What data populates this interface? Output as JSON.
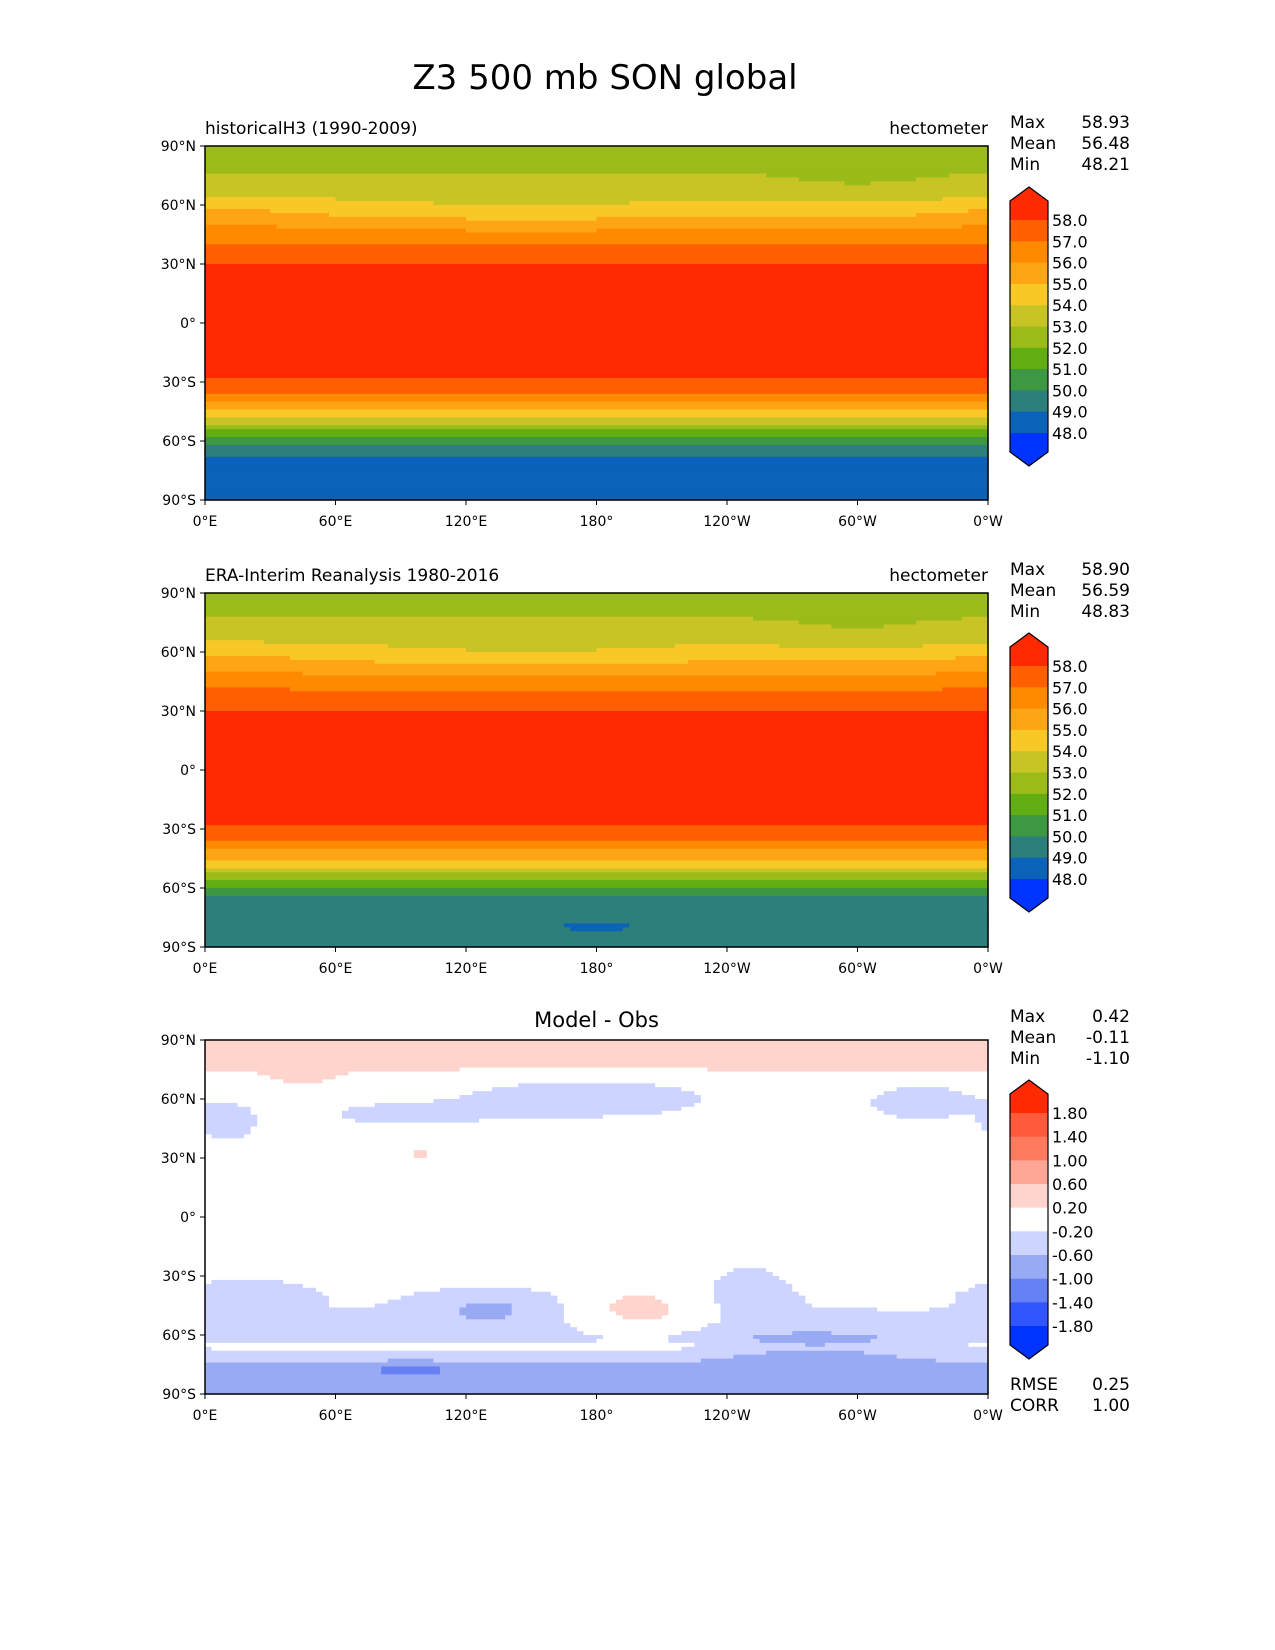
{
  "chart_data": {
    "type": "heatmap",
    "title": "Z3 500 mb SON global",
    "xticks": [
      "0°E",
      "60°E",
      "120°E",
      "180°",
      "120°W",
      "60°W",
      "0°W"
    ],
    "yticks": [
      "90°N",
      "60°N",
      "30°N",
      "0°",
      "30°S",
      "60°S",
      "90°S"
    ],
    "panels": [
      {
        "left_title": "historicalH3 (1990-2009)",
        "right_title": "hectometer",
        "center_title": "",
        "stats": [
          {
            "label": "Max",
            "value": "58.93"
          },
          {
            "label": "Mean",
            "value": "56.48"
          },
          {
            "label": "Min",
            "value": "48.21"
          }
        ],
        "colorbar": {
          "ticks": [
            "58.0",
            "57.0",
            "56.0",
            "55.0",
            "54.0",
            "53.0",
            "52.0",
            "51.0",
            "50.0",
            "49.0",
            "48.0"
          ],
          "levels": [
            58,
            57,
            56,
            55,
            54,
            53,
            52,
            51,
            50,
            49,
            48
          ],
          "colors": [
            "#ff2a00",
            "#ff5f00",
            "#ff8a00",
            "#ffa414",
            "#f8c926",
            "#c8c425",
            "#9bbb1a",
            "#62ad12",
            "#3e9741",
            "#2c7f7a",
            "#0a63b8",
            "#0033ff"
          ]
        },
        "zonal_profile": {
          "lat": [
            90,
            78,
            65,
            55,
            45,
            35,
            25,
            0,
            -20,
            -28,
            -35,
            -42,
            -50,
            -56,
            -60,
            -64,
            -70,
            -80,
            -90
          ],
          "value": [
            52.4,
            52.9,
            53.8,
            55.0,
            56.4,
            57.6,
            58.3,
            58.8,
            58.5,
            58.1,
            57.0,
            55.6,
            53.5,
            51.6,
            50.5,
            49.6,
            48.7,
            48.5,
            48.6
          ]
        },
        "anomalies": [
          {
            "lon": 150,
            "lat": 60,
            "rlon": 60,
            "rlat": 12,
            "value": -0.5
          },
          {
            "lon": 300,
            "lat": 70,
            "rlon": 40,
            "rlat": 12,
            "value": -0.4
          },
          {
            "lon": 10,
            "lat": 55,
            "rlon": 30,
            "rlat": 10,
            "value": 0.4
          }
        ],
        "extras": []
      },
      {
        "left_title": "ERA-Interim Reanalysis 1980-2016",
        "right_title": "hectometer",
        "center_title": "",
        "stats": [
          {
            "label": "Max",
            "value": "58.90"
          },
          {
            "label": "Mean",
            "value": "56.59"
          },
          {
            "label": "Min",
            "value": "48.83"
          }
        ],
        "colorbar": {
          "ticks": [
            "58.0",
            "57.0",
            "56.0",
            "55.0",
            "54.0",
            "53.0",
            "52.0",
            "51.0",
            "50.0",
            "49.0",
            "48.0"
          ],
          "levels": [
            58,
            57,
            56,
            55,
            54,
            53,
            52,
            51,
            50,
            49,
            48
          ],
          "colors": [
            "#ff2a00",
            "#ff5f00",
            "#ff8a00",
            "#ffa414",
            "#f8c926",
            "#c8c425",
            "#9bbb1a",
            "#62ad12",
            "#3e9741",
            "#2c7f7a",
            "#0a63b8",
            "#0033ff"
          ]
        },
        "zonal_profile": {
          "lat": [
            90,
            78,
            65,
            55,
            45,
            35,
            25,
            0,
            -20,
            -28,
            -35,
            -42,
            -50,
            -56,
            -60,
            -64,
            -70,
            -80,
            -90
          ],
          "value": [
            52.5,
            53.0,
            53.9,
            55.1,
            56.5,
            57.7,
            58.3,
            58.8,
            58.5,
            58.1,
            57.1,
            55.8,
            53.8,
            51.9,
            50.7,
            49.9,
            49.3,
            49.3,
            49.4
          ]
        },
        "anomalies": [
          {
            "lon": 150,
            "lat": 60,
            "rlon": 60,
            "rlat": 12,
            "value": -0.5
          },
          {
            "lon": 300,
            "lat": 70,
            "rlon": 40,
            "rlat": 12,
            "value": -0.4
          },
          {
            "lon": 10,
            "lat": 55,
            "rlon": 30,
            "rlat": 10,
            "value": 0.4
          },
          {
            "lon": 180,
            "lat": -80,
            "rlon": 18,
            "rlat": 3,
            "value": -0.6
          }
        ],
        "extras": []
      },
      {
        "left_title": "",
        "right_title": "",
        "center_title": "Model - Obs",
        "stats": [
          {
            "label": "Max",
            "value": "0.42"
          },
          {
            "label": "Mean",
            "value": "-0.11"
          },
          {
            "label": "Min",
            "value": "-1.10"
          }
        ],
        "colorbar": {
          "ticks": [
            "1.80",
            "1.40",
            "1.00",
            "0.60",
            "0.20",
            "-0.20",
            "-0.60",
            "-1.00",
            "-1.40",
            "-1.80"
          ],
          "levels": [
            1.8,
            1.4,
            1.0,
            0.6,
            0.2,
            -0.2,
            -0.6,
            -1.0,
            -1.4,
            -1.8
          ],
          "colors": [
            "#ff2a00",
            "#ff5a3c",
            "#ff7a5e",
            "#ffa696",
            "#ffd4cc",
            "#ffffff",
            "#ccd4ff",
            "#99aaf5",
            "#6680f5",
            "#3355ff",
            "#0033ff"
          ]
        },
        "zonal_profile": {
          "lat": [
            90,
            80,
            76,
            70,
            60,
            45,
            0,
            -30,
            -40,
            -55,
            -62,
            -66,
            -70,
            -76,
            -90
          ],
          "value": [
            0.3,
            0.3,
            0.25,
            0.0,
            -0.05,
            0.0,
            0.0,
            0.0,
            -0.15,
            -0.25,
            -0.35,
            -0.1,
            -0.45,
            -0.7,
            -0.7
          ]
        },
        "anomalies": [
          {
            "lon": 45,
            "lat": 72,
            "rlon": 18,
            "rlat": 8,
            "value": 0.3
          },
          {
            "lon": 175,
            "lat": 60,
            "rlon": 50,
            "rlat": 9,
            "value": -0.5
          },
          {
            "lon": 95,
            "lat": 52,
            "rlon": 40,
            "rlat": 6,
            "value": -0.35
          },
          {
            "lon": 330,
            "lat": 58,
            "rlon": 22,
            "rlat": 8,
            "value": -0.5
          },
          {
            "lon": 10,
            "lat": 48,
            "rlon": 15,
            "rlat": 10,
            "value": -0.4
          },
          {
            "lon": 130,
            "lat": -47,
            "rlon": 28,
            "rlat": 10,
            "value": -0.5
          },
          {
            "lon": 20,
            "lat": -38,
            "rlon": 25,
            "rlat": 7,
            "value": -0.4
          },
          {
            "lon": 200,
            "lat": -48,
            "rlon": 28,
            "rlat": 14,
            "value": 0.5
          },
          {
            "lon": 250,
            "lat": -35,
            "rlon": 18,
            "rlat": 12,
            "value": -0.4
          },
          {
            "lon": 280,
            "lat": -64,
            "rlon": 45,
            "rlat": 8,
            "value": -0.45
          },
          {
            "lon": 95,
            "lat": -78,
            "rlon": 22,
            "rlat": 3,
            "value": -0.5
          },
          {
            "lon": 100,
            "lat": 32,
            "rlon": 8,
            "rlat": 2,
            "value": 0.3
          }
        ],
        "extras": [
          {
            "label": "RMSE",
            "value": "0.25"
          },
          {
            "label": "CORR",
            "value": "1.00"
          }
        ]
      }
    ]
  }
}
